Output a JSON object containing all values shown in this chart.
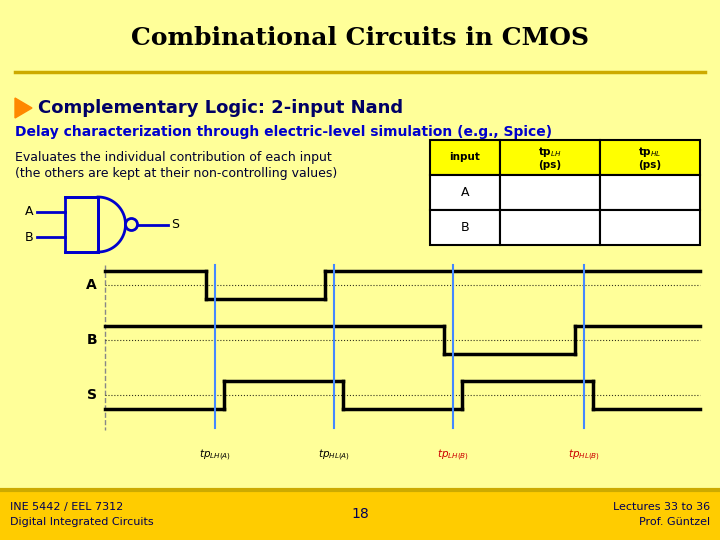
{
  "title": "Combinational Circuits in CMOS",
  "subtitle": "Complementary Logic: 2-input Nand",
  "subtitle2": "Delay characterization through electric-level simulation (e.g., Spice)",
  "body_line1": "Evaluates the individual contribution of each input",
  "body_line2": "(the others are kept at their non-controlling values)",
  "bg_color": "#FFFF99",
  "title_color": "#000000",
  "subtitle_color": "#000066",
  "subtitle2_color": "#0000CC",
  "body_color": "#000033",
  "footer_bg": "#FFCC00",
  "footer_left1": "INE 5442 / EEL 7312",
  "footer_left2": "Digital Integrated Circuits",
  "footer_center": "18",
  "footer_right1": "Lectures 33 to 36",
  "footer_right2": "Prof. Güntzel",
  "nand_color": "#0000CC",
  "wave_color": "#000000",
  "timing_line_color": "#4488FF",
  "timing_label_black": "#000000",
  "timing_label_red": "#CC0000"
}
